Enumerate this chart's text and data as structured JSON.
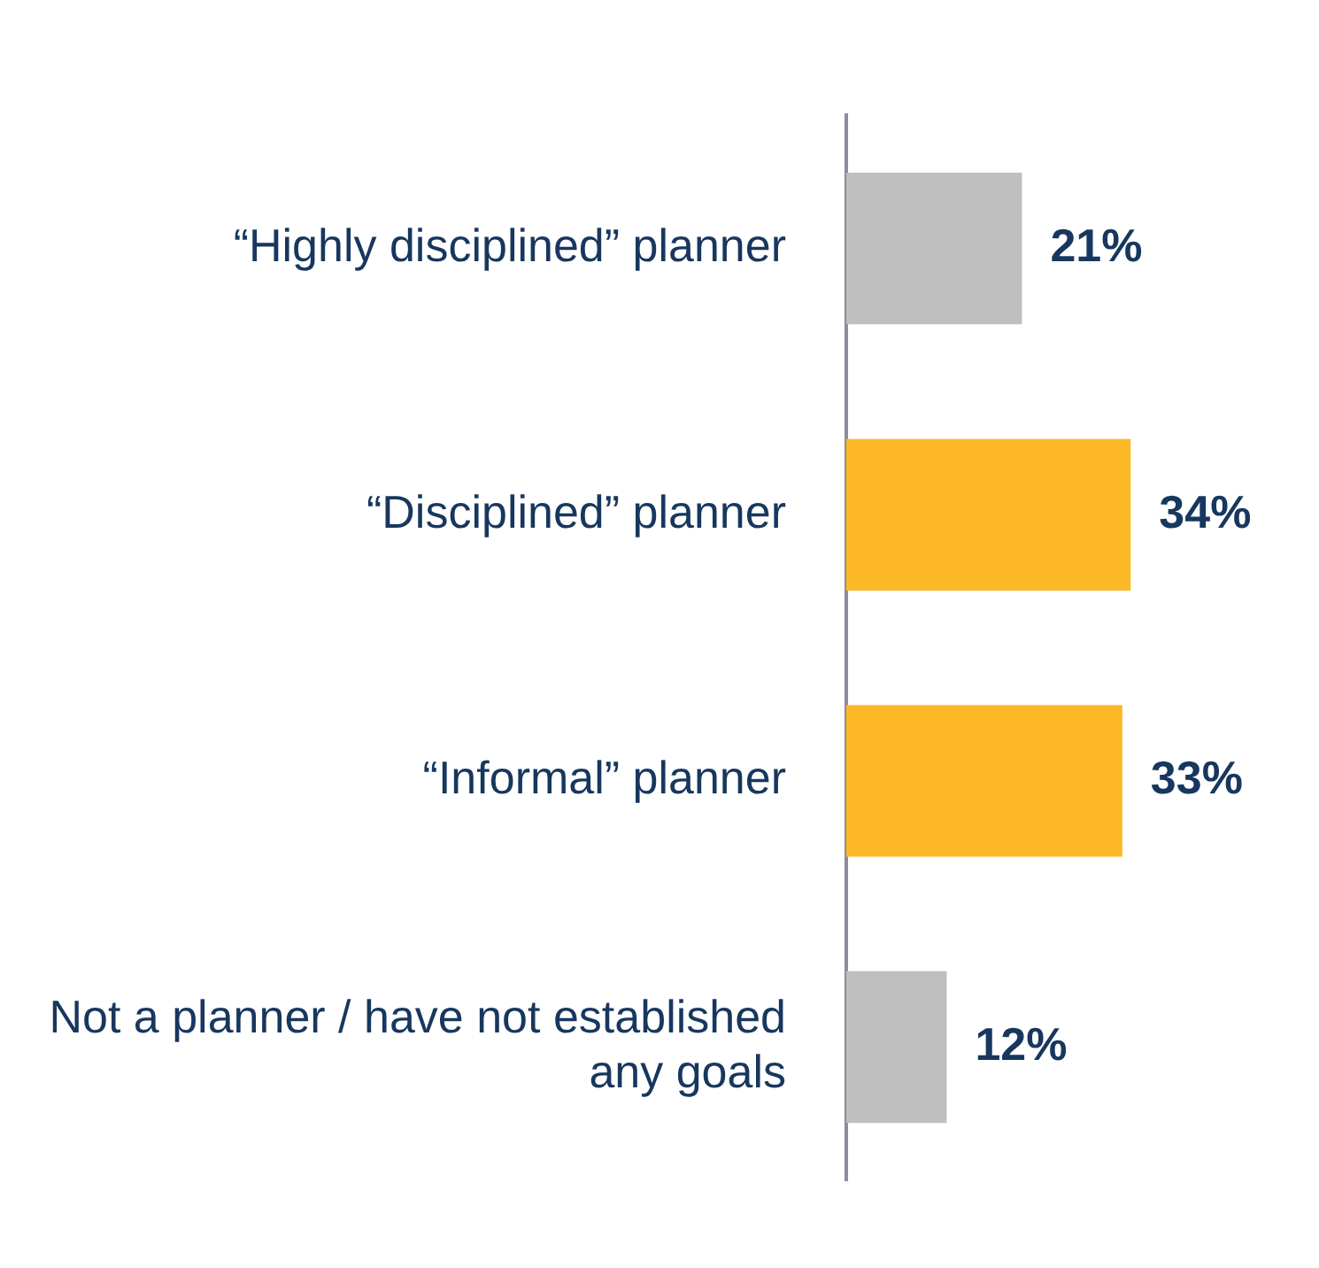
{
  "chart_data": {
    "type": "bar",
    "orientation": "horizontal",
    "categories": [
      "“Highly disciplined” planner",
      "“Disciplined” planner",
      "“Informal” planner",
      "Not a planner / have not established any goals"
    ],
    "values": [
      21,
      34,
      33,
      12
    ],
    "colors": [
      "#bfbfbf",
      "#fdb827",
      "#fdb827",
      "#bfbfbf"
    ],
    "value_labels": [
      "21%",
      "34%",
      "33%",
      "12%"
    ],
    "legend": false,
    "tick_labels": "y"
  }
}
